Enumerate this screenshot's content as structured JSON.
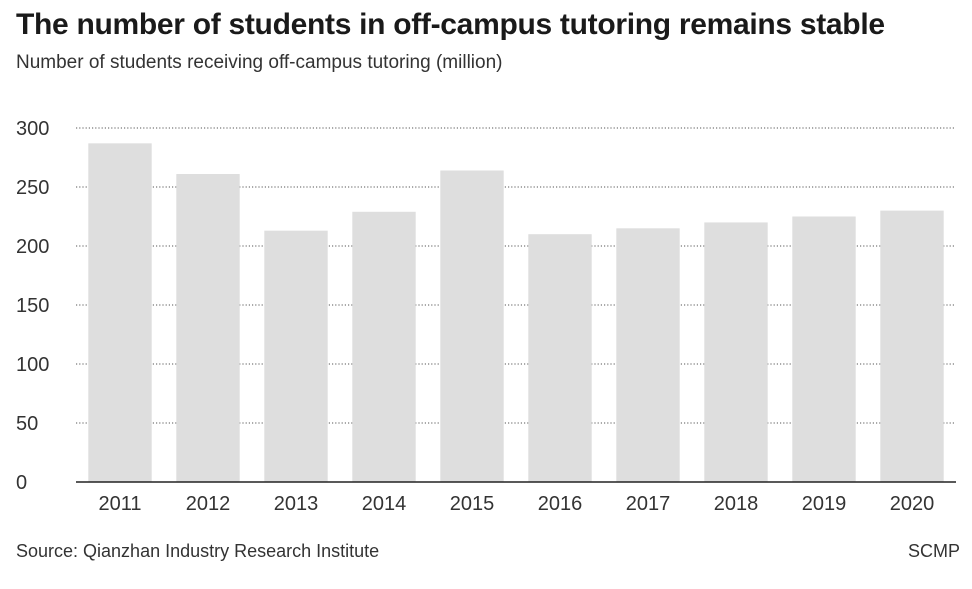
{
  "chart_data": {
    "type": "bar",
    "title": "The number of students in off-campus tutoring remains stable",
    "subtitle": "Number of students receiving off-campus tutoring (million)",
    "categories": [
      "2011",
      "2012",
      "2013",
      "2014",
      "2015",
      "2016",
      "2017",
      "2018",
      "2019",
      "2020"
    ],
    "values": [
      287,
      261,
      213,
      229,
      264,
      210,
      215,
      220,
      225,
      230
    ],
    "yticks": [
      0,
      50,
      100,
      150,
      200,
      250,
      300
    ],
    "ylim": [
      0,
      300
    ],
    "xlabel": "",
    "ylabel": "",
    "grid": true,
    "legend": "none",
    "bar_color": "#dedede",
    "grid_color": "#555555",
    "axis_color": "#222222"
  },
  "footer": {
    "source": "Source: Qianzhan Industry Research Institute",
    "credit": "SCMP"
  }
}
